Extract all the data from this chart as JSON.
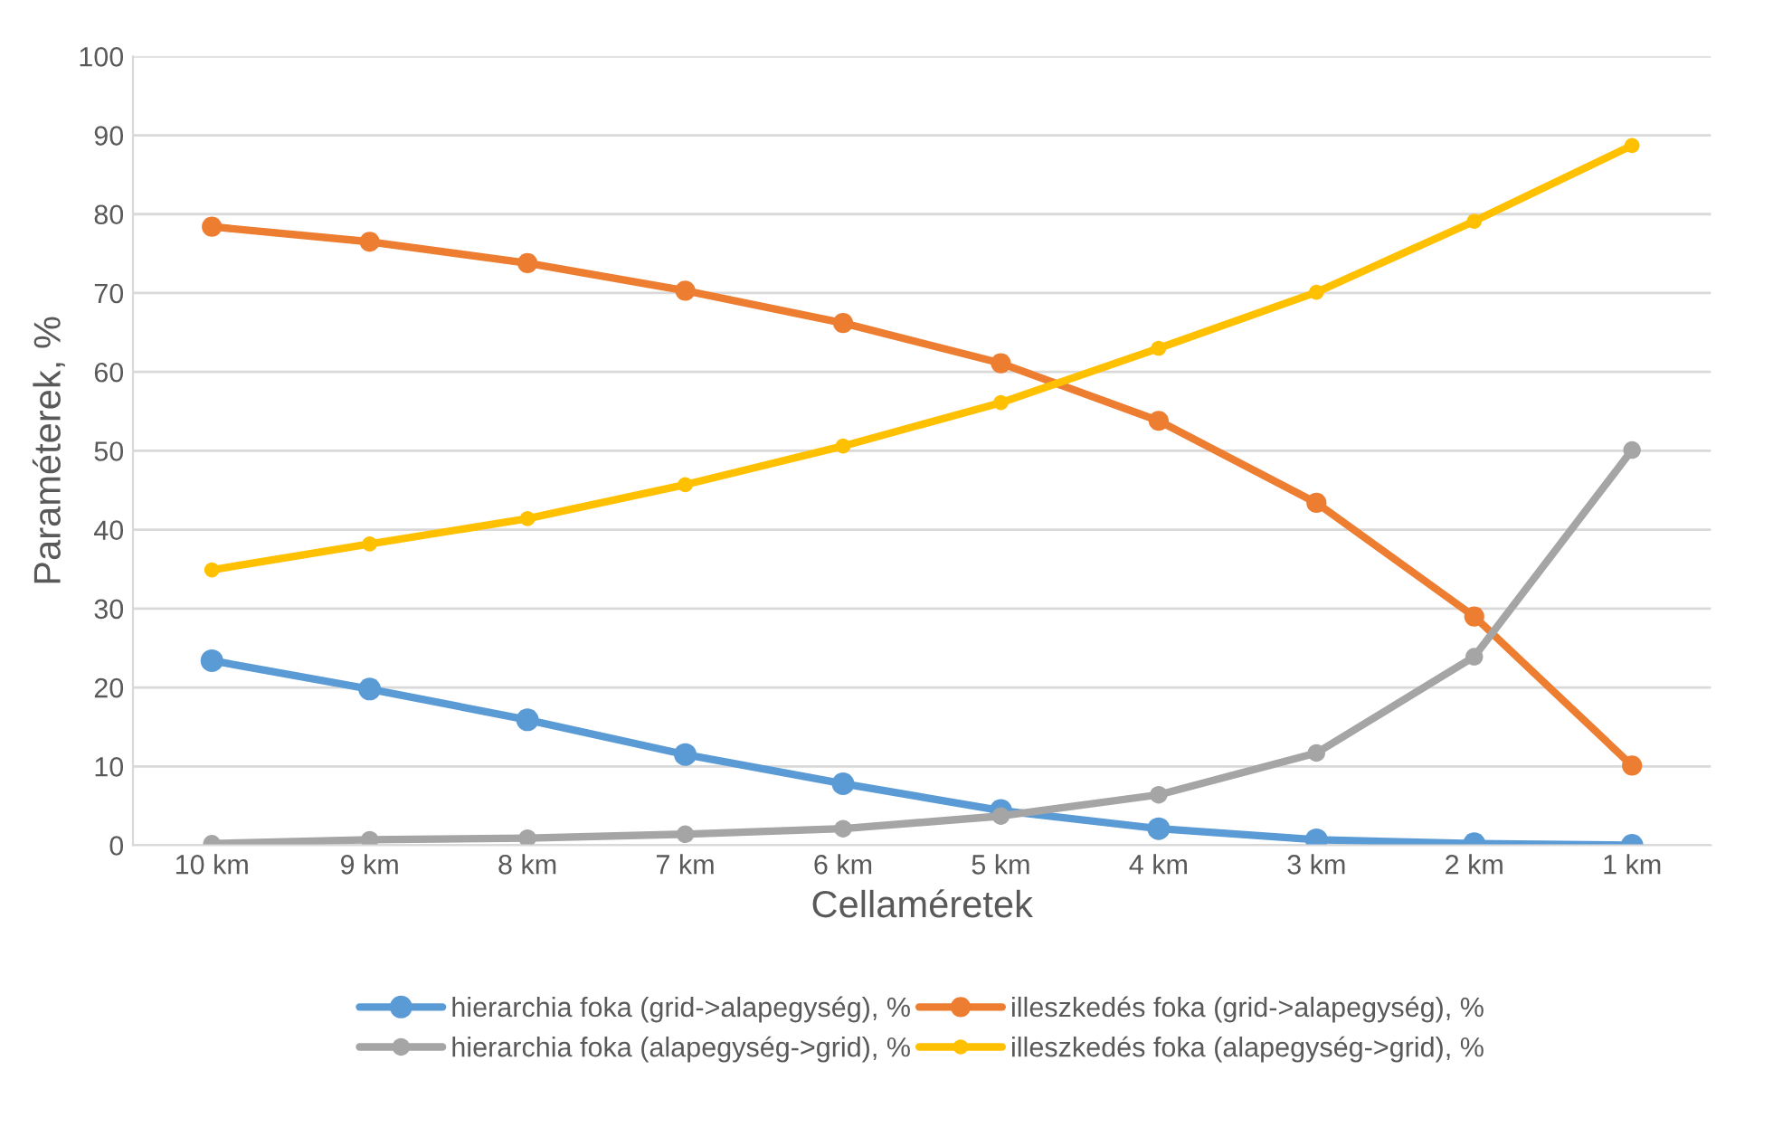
{
  "chart_data": {
    "type": "line",
    "xlabel": "Cellaméretek",
    "ylabel": "Paraméterek, %",
    "categories": [
      "10 km",
      "9 km",
      "8 km",
      "7 km",
      "6 km",
      "5 km",
      "4 km",
      "3 km",
      "2 km",
      "1 km"
    ],
    "series": [
      {
        "name": "hierarchia foka (grid->alapegység), %",
        "color": "#5b9bd5",
        "values": [
          23.4,
          19.8,
          15.9,
          11.5,
          7.8,
          4.4,
          2.1,
          0.7,
          0.2,
          0
        ]
      },
      {
        "name": "illeszkedés foka (grid->alapegység), %",
        "color": "#ed7d31",
        "values": [
          78.4,
          76.5,
          73.8,
          70.3,
          66.2,
          61.1,
          53.8,
          43.4,
          29.0,
          10.1
        ]
      },
      {
        "name": "hierarchia foka (alapegység->grid), %",
        "color": "#a5a5a5",
        "values": [
          0.2,
          0.7,
          0.9,
          1.4,
          2.1,
          3.7,
          6.4,
          11.7,
          23.9,
          50.1
        ]
      },
      {
        "name": "illeszkedés foka (alapegység->grid), %",
        "color": "#ffc000",
        "values": [
          34.9,
          38.2,
          41.4,
          45.7,
          50.6,
          56.1,
          63.0,
          70.1,
          79.1,
          88.7
        ]
      }
    ],
    "ylim": [
      0,
      100
    ],
    "yticks": [
      0,
      10,
      20,
      30,
      40,
      50,
      60,
      70,
      80,
      90,
      100
    ],
    "grid": "y",
    "legend": "bottom",
    "marker": "circle",
    "line_style": "solid"
  }
}
